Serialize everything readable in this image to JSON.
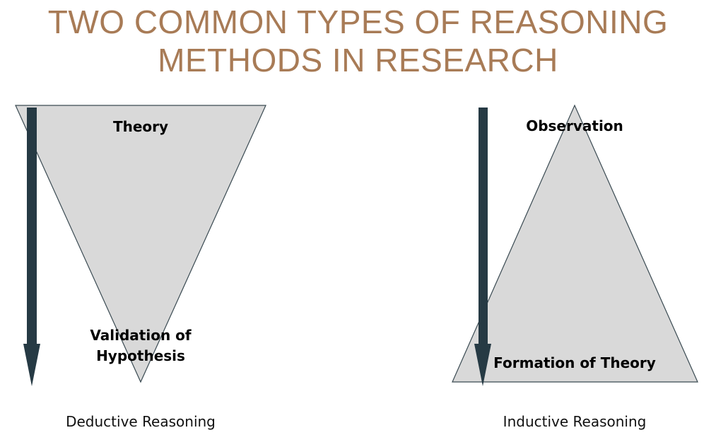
{
  "title": {
    "line1": "TWO COMMON TYPES OF REASONING",
    "line2": "METHODS IN RESEARCH"
  },
  "deductive": {
    "top_label": "Theory",
    "bottom_label_line1": "Validation of",
    "bottom_label_line2": "Hypothesis",
    "caption": "Deductive Reasoning"
  },
  "inductive": {
    "top_label": "Observation",
    "bottom_label": "Formation of Theory",
    "caption": "Inductive Reasoning"
  },
  "colors": {
    "title": "#a87b56",
    "triangle_fill": "#d9d9d9",
    "triangle_stroke": "#3a4a52",
    "arrow": "#263a44"
  }
}
